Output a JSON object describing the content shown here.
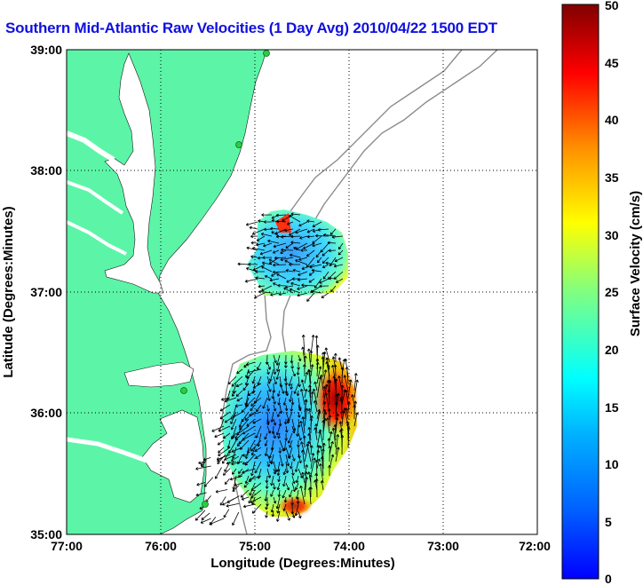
{
  "title": "Southern Mid-Atlantic Raw Velocities (1 Day Avg) 2010/04/22 1500 EDT",
  "x_axis": {
    "label": "Longitude (Degrees:Minutes)",
    "ticks": [
      "77:00",
      "76:00",
      "75:00",
      "74:00",
      "73:00",
      "72:00"
    ]
  },
  "y_axis": {
    "label": "Latitude (Degrees:Minutes)",
    "ticks": [
      "39:00",
      "38:00",
      "37:00",
      "36:00",
      "35:00"
    ]
  },
  "colorbar": {
    "label": "Surface Velocity (cm/s)",
    "ticks": [
      "50",
      "45",
      "40",
      "35",
      "30",
      "25",
      "20",
      "15",
      "10",
      "5",
      "0"
    ],
    "range": [
      0,
      50
    ],
    "colormap": "jet"
  },
  "colors": {
    "title": "#1010e0",
    "land": "#5cf5a8",
    "isobath": "#8c8c8c",
    "station": "#2ecc40",
    "arrows": "#000000"
  },
  "map": {
    "lon_range": [
      -77,
      -72
    ],
    "lat_range": [
      35,
      39
    ],
    "grid": "dotted",
    "stations": 4
  }
}
